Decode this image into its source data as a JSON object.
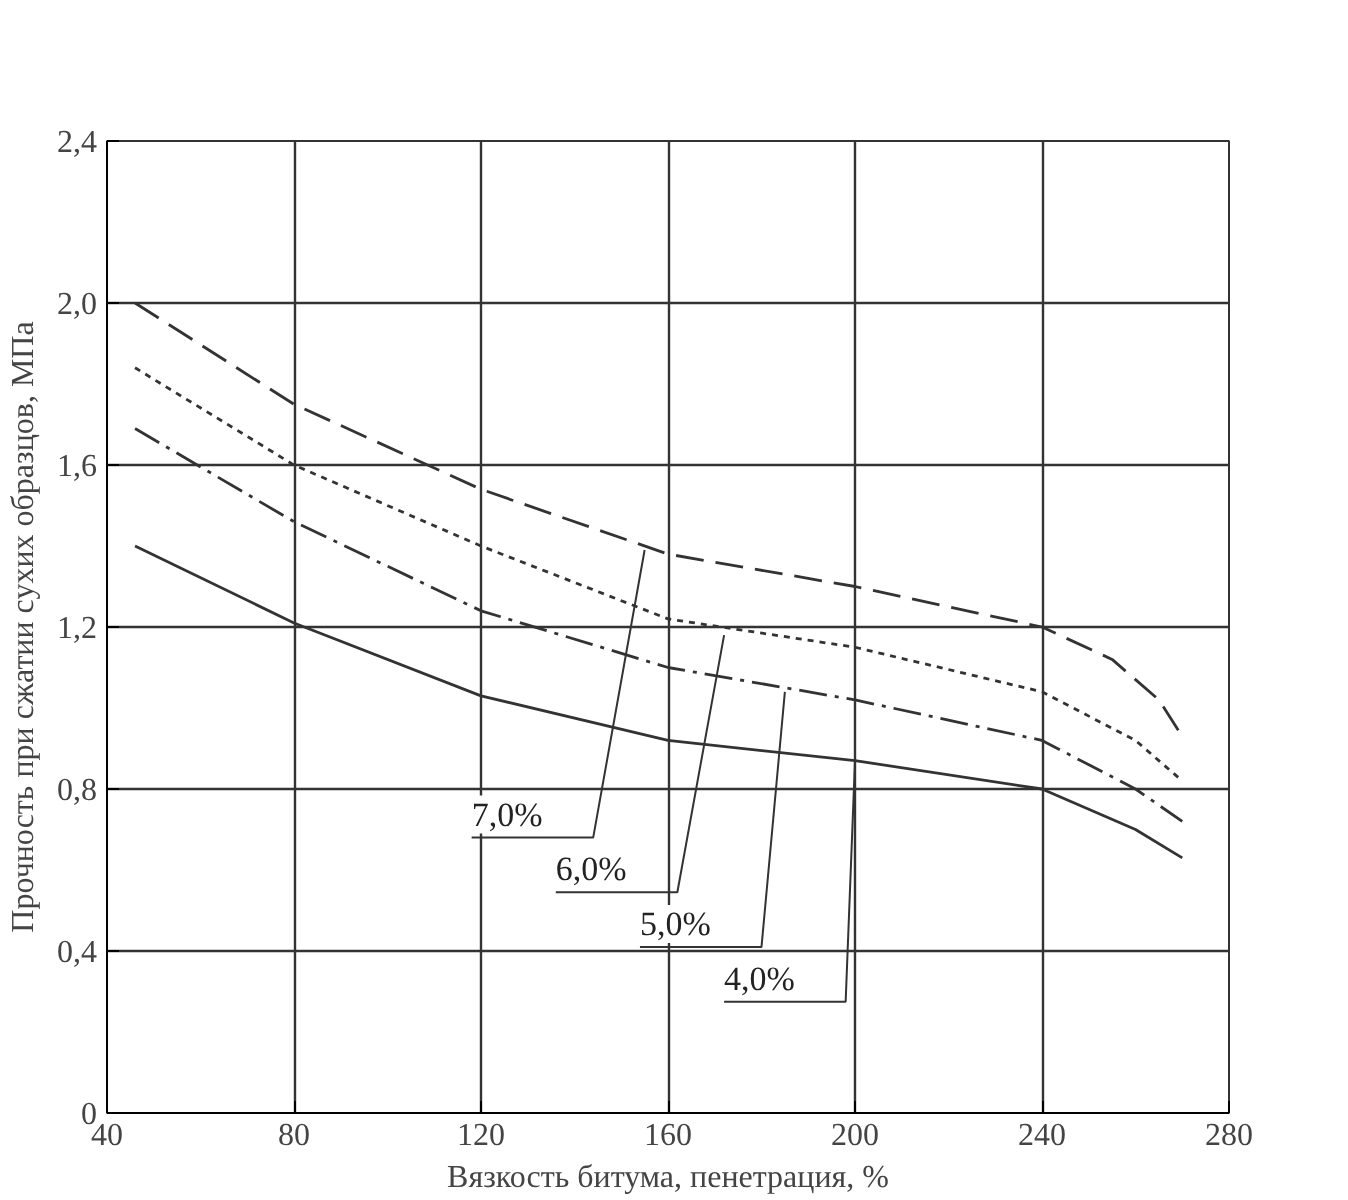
{
  "chart_data": {
    "type": "line",
    "xlabel": "Вязкость битума, пенетрация, %",
    "ylabel": "Прочность при сжатии сухих образцов, МПа",
    "xlim": [
      40,
      280
    ],
    "ylim": [
      0,
      2.4
    ],
    "xticks": [
      40,
      80,
      120,
      160,
      200,
      240,
      280
    ],
    "yticks": [
      0,
      {
        "value": 0.4,
        "label": "0,4"
      },
      {
        "value": 0.8,
        "label": "0,8"
      },
      {
        "value": 1.2,
        "label": "1,2"
      },
      {
        "value": 1.6,
        "label": "1,6"
      },
      {
        "value": 2.0,
        "label": "2,0"
      },
      {
        "value": 2.4,
        "label": "2,4"
      }
    ],
    "grid": true,
    "series": [
      {
        "color": "#333333",
        "line_style": "dashed",
        "x": [
          46,
          80,
          120,
          160,
          200,
          240,
          255,
          265,
          270
        ],
        "values": [
          2.0,
          1.75,
          1.54,
          1.38,
          1.3,
          1.2,
          1.12,
          1.02,
          0.93
        ]
      },
      {
        "color": "#333333",
        "line_style": "dotted",
        "x": [
          46,
          80,
          120,
          160,
          200,
          240,
          260,
          270
        ],
        "values": [
          1.84,
          1.6,
          1.4,
          1.22,
          1.15,
          1.04,
          0.92,
          0.82
        ]
      },
      {
        "color": "#333333",
        "line_style": "dashdot",
        "x": [
          46,
          80,
          120,
          160,
          200,
          240,
          260,
          270
        ],
        "values": [
          1.69,
          1.46,
          1.24,
          1.1,
          1.02,
          0.92,
          0.8,
          0.72
        ]
      },
      {
        "color": "#333333",
        "line_style": "solid",
        "x": [
          46,
          80,
          120,
          160,
          200,
          240,
          260,
          270
        ],
        "values": [
          1.4,
          1.21,
          1.03,
          0.92,
          0.87,
          0.8,
          0.7,
          0.63
        ]
      }
    ],
    "annotations": [
      {
        "text": "7,0%",
        "x": 155,
        "y": 1.39
      },
      {
        "text": "6,0%",
        "x": 172,
        "y": 1.18
      },
      {
        "text": "5,0%",
        "x": 185,
        "y": 1.04
      },
      {
        "text": "4,0%",
        "x": 200,
        "y": 0.87
      }
    ]
  }
}
